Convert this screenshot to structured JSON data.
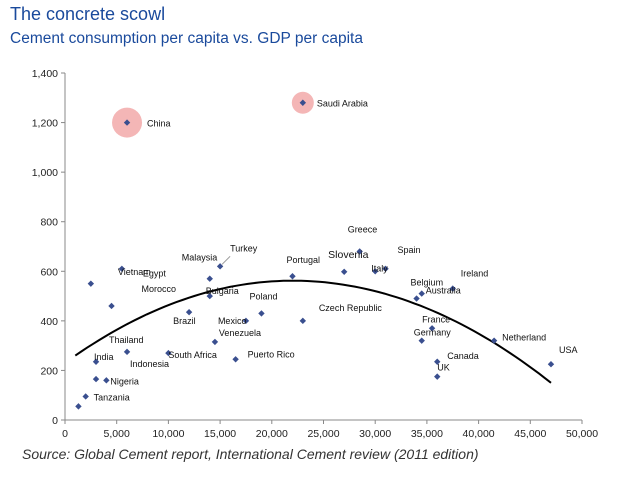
{
  "header": {
    "title": "The concrete scowl",
    "subtitle": "Cement consumption per capita vs. GDP per capita"
  },
  "footer": {
    "source": "Source:  Global Cement report, International Cement review (2011 edition)"
  },
  "colors": {
    "title": "#1a4a9c",
    "point": "#3a4f8f",
    "trend": "#000000",
    "bubble": "#f2a9a9",
    "axis": "#888888"
  },
  "chart_data": {
    "type": "scatter",
    "title": "Cement consumption per capita vs. GDP per capita",
    "xlabel": "",
    "ylabel": "",
    "xlim": [
      0,
      50000
    ],
    "ylim": [
      0,
      1400
    ],
    "xticks": [
      {
        "value": 0,
        "label": "0"
      },
      {
        "value": 5000,
        "label": "5,000"
      },
      {
        "value": 10000,
        "label": "10,000"
      },
      {
        "value": 15000,
        "label": "15,000"
      },
      {
        "value": 20000,
        "label": "20,000"
      },
      {
        "value": 25000,
        "label": "25,000"
      },
      {
        "value": 30000,
        "label": "30,000"
      },
      {
        "value": 35000,
        "label": "35,000"
      },
      {
        "value": 40000,
        "label": "40,000"
      },
      {
        "value": 45000,
        "label": "45,000"
      },
      {
        "value": 50000,
        "label": "50,000"
      }
    ],
    "yticks": [
      {
        "value": 0,
        "label": "0"
      },
      {
        "value": 200,
        "label": "200"
      },
      {
        "value": 400,
        "label": "400"
      },
      {
        "value": 600,
        "label": "600"
      },
      {
        "value": 800,
        "label": "800"
      },
      {
        "value": 1000,
        "label": "1,000"
      },
      {
        "value": 1200,
        "label": "1,200"
      },
      {
        "value": 1400,
        "label": "1,400"
      }
    ],
    "highlighted": [
      "China",
      "Saudi Arabia"
    ],
    "trend": {
      "type": "quadratic",
      "x_from": 1000,
      "x_to": 47000,
      "y_start": 260,
      "y_peak": 562,
      "x_peak": 22000,
      "y_end": 150
    },
    "points": [
      {
        "name": "China",
        "label": "China",
        "x": 6000,
        "y": 1200
      },
      {
        "name": "Saudi Arabia",
        "label": "Saudi Arabia",
        "x": 23000,
        "y": 1280
      },
      {
        "name": "Greece",
        "label": "Greece",
        "x": 28500,
        "y": 680
      },
      {
        "name": "Slovenia",
        "label": "Slovenia",
        "x": 27000,
        "y": 598
      },
      {
        "name": "Spain",
        "label": "Spain",
        "x": 31000,
        "y": 610
      },
      {
        "name": "Italy",
        "label": "Italy",
        "x": 30000,
        "y": 600
      },
      {
        "name": "Belgium",
        "label": "Belgium",
        "x": 34000,
        "y": 490
      },
      {
        "name": "Ireland",
        "label": "Ireland",
        "x": 37500,
        "y": 530
      },
      {
        "name": "Australia",
        "label": "Australia",
        "x": 34500,
        "y": 510
      },
      {
        "name": "Portugal",
        "label": "Portugal",
        "x": 22000,
        "y": 580
      },
      {
        "name": "Malaysia",
        "label": "Malaysia",
        "x": 14000,
        "y": 570
      },
      {
        "name": "Turkey",
        "label": "Turkey",
        "x": 15000,
        "y": 620
      },
      {
        "name": "Egypt",
        "label": "Egypt",
        "x": 2500,
        "y": 550
      },
      {
        "name": "Vietnam",
        "label": "Vietnam",
        "x": 5500,
        "y": 610
      },
      {
        "name": "Morocco",
        "label": "Morocco",
        "x": 4500,
        "y": 460
      },
      {
        "name": "Bulgaria",
        "label": "Bulgaria",
        "x": 14000,
        "y": 500
      },
      {
        "name": "Poland",
        "label": "Poland",
        "x": 19000,
        "y": 430
      },
      {
        "name": "Czech Republic",
        "label": "Czech Republic",
        "x": 23000,
        "y": 400
      },
      {
        "name": "Brazil",
        "label": "Brazil",
        "x": 12000,
        "y": 435
      },
      {
        "name": "Mexico",
        "label": "Mexico",
        "x": 17500,
        "y": 400
      },
      {
        "name": "Venezuela",
        "label": "Venezuela",
        "x": 14500,
        "y": 315
      },
      {
        "name": "South Africa",
        "label": "South Africa",
        "x": 10000,
        "y": 270
      },
      {
        "name": "Puerto Rico",
        "label": "Puerto Rico",
        "x": 16500,
        "y": 245
      },
      {
        "name": "Thailand",
        "label": "Thailand",
        "x": 6000,
        "y": 275
      },
      {
        "name": "Indonesia",
        "label": "Indonesia",
        "x": 3000,
        "y": 235
      },
      {
        "name": "India",
        "label": "India",
        "x": 3000,
        "y": 165
      },
      {
        "name": "Nigeria",
        "label": "Nigeria",
        "x": 4000,
        "y": 160
      },
      {
        "name": "Tanzania",
        "label": "Tanzania",
        "x": 2000,
        "y": 95
      },
      {
        "name": "Low-income point",
        "label": "",
        "x": 1300,
        "y": 55
      },
      {
        "name": "France",
        "label": "France",
        "x": 35500,
        "y": 370
      },
      {
        "name": "Germany",
        "label": "Germany",
        "x": 34500,
        "y": 320
      },
      {
        "name": "Canada",
        "label": "Canada",
        "x": 36000,
        "y": 235
      },
      {
        "name": "UK",
        "label": "UK",
        "x": 36000,
        "y": 175
      },
      {
        "name": "Netherland",
        "label": "Netherland",
        "x": 41500,
        "y": 320
      },
      {
        "name": "USA",
        "label": "USA",
        "x": 47000,
        "y": 225
      }
    ]
  }
}
